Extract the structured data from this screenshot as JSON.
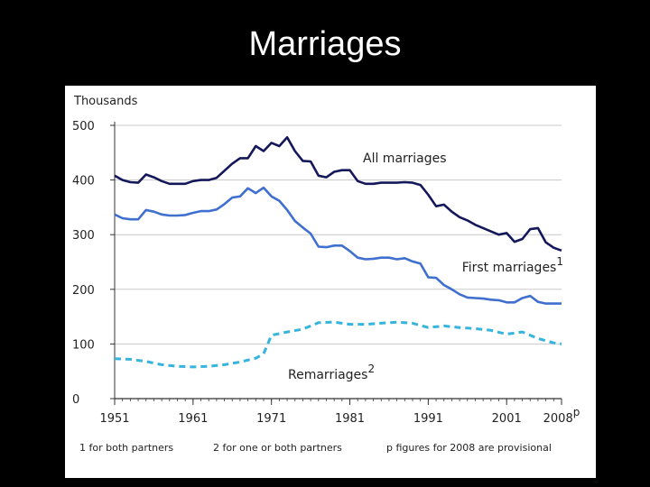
{
  "slide": {
    "title": "Marriages"
  },
  "chart_data": {
    "type": "line",
    "unit_label": "Thousands",
    "ylim": [
      0,
      500
    ],
    "y_ticks": [
      0,
      100,
      200,
      300,
      400,
      500
    ],
    "xlim": [
      1951,
      2008
    ],
    "x_ticks": [
      {
        "value": 1951,
        "label": "1951"
      },
      {
        "value": 1961,
        "label": "1961"
      },
      {
        "value": 1971,
        "label": "1971"
      },
      {
        "value": 1981,
        "label": "1981"
      },
      {
        "value": 1991,
        "label": "1991"
      },
      {
        "value": 2001,
        "label": "2001"
      },
      {
        "value": 2008,
        "label": "2008",
        "sup": "p"
      }
    ],
    "grid": "horizontal",
    "series": [
      {
        "name": "All marriages",
        "color": "#14185a",
        "style": "solid",
        "x": [
          1951,
          1952,
          1953,
          1954,
          1955,
          1956,
          1957,
          1958,
          1959,
          1960,
          1961,
          1962,
          1963,
          1964,
          1965,
          1966,
          1967,
          1968,
          1969,
          1970,
          1971,
          1972,
          1973,
          1974,
          1975,
          1976,
          1977,
          1978,
          1979,
          1980,
          1981,
          1982,
          1983,
          1984,
          1985,
          1986,
          1987,
          1988,
          1989,
          1990,
          1991,
          1992,
          1993,
          1994,
          1995,
          1996,
          1997,
          1998,
          1999,
          2000,
          2001,
          2002,
          2003,
          2004,
          2005,
          2006,
          2007,
          2008
        ],
        "values": [
          408,
          400,
          396,
          395,
          410,
          405,
          398,
          393,
          393,
          393,
          398,
          400,
          400,
          404,
          417,
          430,
          440,
          440,
          462,
          453,
          468,
          462,
          478,
          453,
          435,
          434,
          408,
          405,
          415,
          418,
          418,
          398,
          393,
          393,
          395,
          395,
          395,
          396,
          395,
          391,
          373,
          352,
          355,
          342,
          332,
          326,
          318,
          312,
          306,
          300,
          303,
          287,
          292,
          310,
          312,
          286,
          276,
          271
        ]
      },
      {
        "name": "First marriages",
        "name_sup": "1",
        "color": "#3f6fcf",
        "style": "solid",
        "x": [
          1951,
          1952,
          1953,
          1954,
          1955,
          1956,
          1957,
          1958,
          1959,
          1960,
          1961,
          1962,
          1963,
          1964,
          1965,
          1966,
          1967,
          1968,
          1969,
          1970,
          1971,
          1972,
          1973,
          1974,
          1975,
          1976,
          1977,
          1978,
          1979,
          1980,
          1981,
          1982,
          1983,
          1984,
          1985,
          1986,
          1987,
          1988,
          1989,
          1990,
          1991,
          1992,
          1993,
          1994,
          1995,
          1996,
          1997,
          1998,
          1999,
          2000,
          2001,
          2002,
          2003,
          2004,
          2005,
          2006,
          2007,
          2008
        ],
        "values": [
          337,
          330,
          328,
          328,
          345,
          342,
          337,
          335,
          335,
          336,
          340,
          343,
          343,
          346,
          356,
          368,
          370,
          385,
          376,
          386,
          370,
          362,
          345,
          325,
          313,
          302,
          278,
          277,
          280,
          280,
          270,
          258,
          255,
          256,
          258,
          258,
          255,
          257,
          251,
          247,
          222,
          221,
          208,
          200,
          191,
          185,
          184,
          183,
          181,
          180,
          176,
          176,
          184,
          188,
          177,
          174,
          174,
          174
        ]
      },
      {
        "name": "Remarriages",
        "name_sup": "2",
        "color": "#35b4dc",
        "style": "dashed",
        "x": [
          1951,
          1953,
          1955,
          1957,
          1959,
          1961,
          1963,
          1965,
          1967,
          1969,
          1970,
          1971,
          1973,
          1975,
          1977,
          1979,
          1981,
          1983,
          1985,
          1987,
          1989,
          1991,
          1993,
          1995,
          1997,
          1999,
          2001,
          2003,
          2005,
          2007,
          2008
        ],
        "values": [
          73,
          72,
          68,
          62,
          59,
          58,
          59,
          62,
          67,
          74,
          82,
          116,
          122,
          127,
          139,
          140,
          136,
          136,
          138,
          140,
          138,
          130,
          133,
          130,
          128,
          125,
          118,
          122,
          110,
          102,
          100
        ]
      }
    ],
    "annotations": [
      {
        "text": "All marriages"
      },
      {
        "text": "First marriages",
        "sup": "1"
      },
      {
        "text": "Remarriages",
        "sup": "2"
      }
    ],
    "footnotes": [
      "1 for both partners",
      "2  for one or both partners",
      "p  figures for 2008 are provisional"
    ]
  }
}
